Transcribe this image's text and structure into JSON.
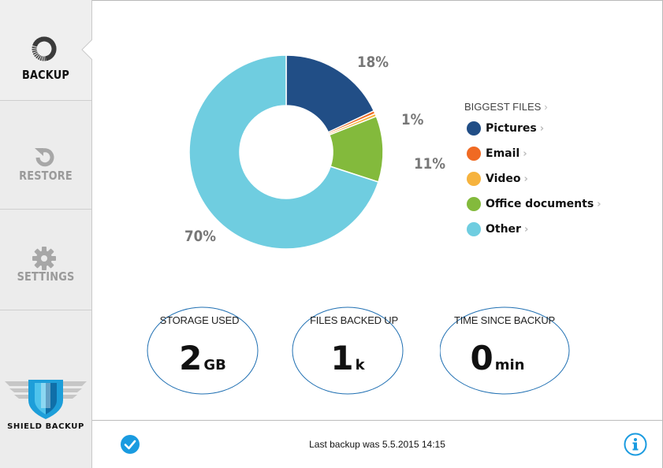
{
  "sidebar": {
    "items": [
      {
        "id": "backup",
        "label": "BACKUP",
        "icon": "backup-ring-icon",
        "active": true
      },
      {
        "id": "restore",
        "label": "RESTORE",
        "icon": "restore-icon",
        "active": false
      },
      {
        "id": "settings",
        "label": "SETTINGS",
        "icon": "gear-icon",
        "active": false
      }
    ],
    "brand": {
      "name": "SHIELD BACKUP",
      "icon": "shield-logo-icon"
    }
  },
  "chart_data": {
    "type": "pie",
    "donut": true,
    "title": "",
    "labels": [
      "Pictures",
      "Email",
      "Video",
      "Office documents",
      "Other"
    ],
    "values": [
      18,
      0.5,
      0.5,
      11,
      70
    ],
    "colors": [
      "#214e86",
      "#f06a23",
      "#f6b33e",
      "#83ba3c",
      "#6fcde0"
    ],
    "data_labels": [
      {
        "text": "18%",
        "series": "Pictures"
      },
      {
        "text": "1%",
        "series": "Email / Video"
      },
      {
        "text": "11%",
        "series": "Office documents"
      },
      {
        "text": "70%",
        "series": "Other"
      }
    ],
    "legend_placement": "right"
  },
  "legend": {
    "title": "BIGGEST FILES",
    "items": [
      {
        "label": "Pictures",
        "color": "#214e86"
      },
      {
        "label": "Email",
        "color": "#f06a23"
      },
      {
        "label": "Video",
        "color": "#f6b33e"
      },
      {
        "label": "Office documents",
        "color": "#83ba3c"
      },
      {
        "label": "Other",
        "color": "#6fcde0"
      }
    ]
  },
  "stats": [
    {
      "label": "STORAGE USED",
      "value": "2",
      "unit": "GB"
    },
    {
      "label": "FILES BACKED UP",
      "value": "1",
      "unit": "k"
    },
    {
      "label": "TIME SINCE BACKUP",
      "value": "0",
      "unit": "min"
    }
  ],
  "footer": {
    "status_text": "Last backup was 5.5.2015 14:15",
    "status_icon": "checkmark-icon",
    "info_icon": "info-icon"
  },
  "colors": {
    "accent": "#1a9be0",
    "sidebar": "#ececec",
    "ellipse": "#1f6fb2"
  }
}
